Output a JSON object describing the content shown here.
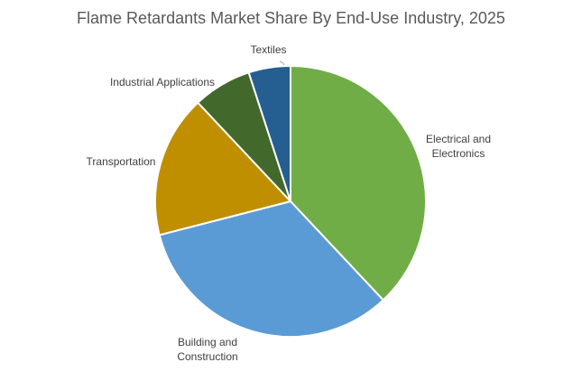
{
  "chart_data": {
    "type": "pie",
    "title": "Flame Retardants Market Share By End-Use Industry, 2025",
    "categories": [
      "Electrical and Electronics",
      "Building and Construction",
      "Transportation",
      "Industrial Applications",
      "Textiles"
    ],
    "values": [
      38,
      33,
      17,
      7,
      5
    ],
    "colors": [
      "#70ad47",
      "#5b9bd5",
      "#bf8f00",
      "#43682b",
      "#255e91"
    ]
  }
}
